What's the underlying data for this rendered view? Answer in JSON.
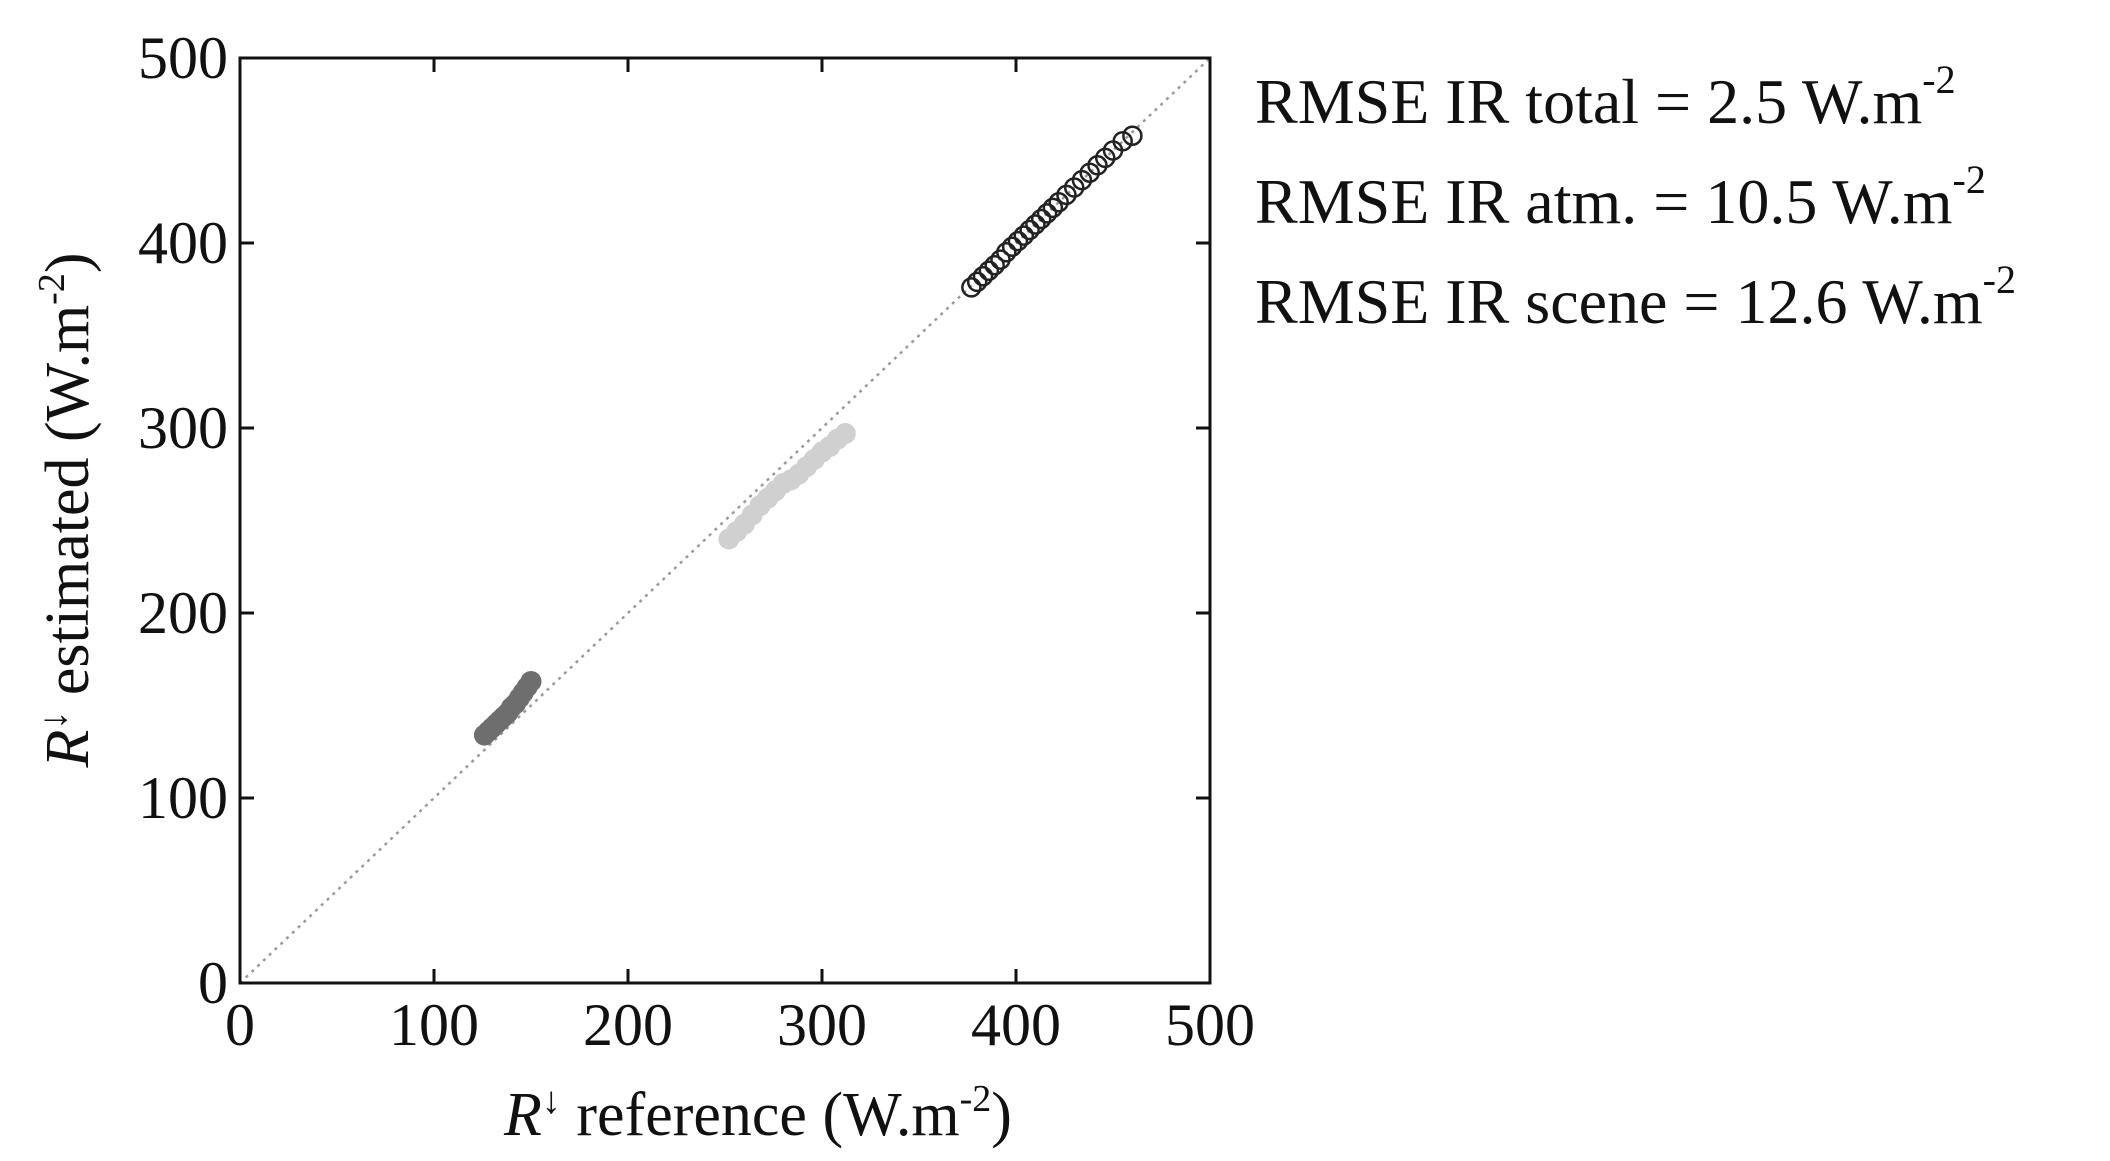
{
  "chart_data": {
    "type": "scatter",
    "xlim": [
      0,
      500
    ],
    "ylim": [
      0,
      500
    ],
    "x_ticks": [
      "0",
      "100",
      "200",
      "300",
      "400",
      "500"
    ],
    "y_ticks": [
      "0",
      "100",
      "200",
      "300",
      "400",
      "500"
    ],
    "xlabel": {
      "symbol": "R",
      "arrow": "↓",
      "text": " reference (W.m",
      "sup": "-2",
      "close": ")"
    },
    "ylabel": {
      "symbol": "R",
      "arrow": "↓",
      "text": " estimated  (W.m",
      "sup": "-2",
      "close": ")"
    },
    "grid": false,
    "reference_line": {
      "style": "dotted",
      "color": "#9a9a9a",
      "from": [
        0,
        0
      ],
      "to": [
        500,
        500
      ]
    },
    "series": [
      {
        "marker": "filled",
        "color": "#6e6e6e",
        "points": [
          [
            126,
            134
          ],
          [
            128,
            136
          ],
          [
            130,
            138
          ],
          [
            132,
            140
          ],
          [
            134,
            142
          ],
          [
            136,
            144
          ],
          [
            138,
            146
          ],
          [
            140,
            149
          ],
          [
            142,
            151
          ],
          [
            144,
            154
          ],
          [
            146,
            157
          ],
          [
            148,
            160
          ],
          [
            150,
            163
          ]
        ]
      },
      {
        "marker": "filled",
        "color": "#d0d0d0",
        "points": [
          [
            252,
            240
          ],
          [
            256,
            244
          ],
          [
            260,
            248
          ],
          [
            264,
            253
          ],
          [
            268,
            258
          ],
          [
            272,
            262
          ],
          [
            276,
            266
          ],
          [
            280,
            270
          ],
          [
            284,
            272
          ],
          [
            288,
            275
          ],
          [
            292,
            279
          ],
          [
            296,
            283
          ],
          [
            300,
            287
          ],
          [
            304,
            290
          ],
          [
            308,
            294
          ],
          [
            312,
            297
          ]
        ]
      },
      {
        "marker": "open-circle",
        "color": "#222222",
        "points": [
          [
            377,
            376
          ],
          [
            380,
            379
          ],
          [
            383,
            382
          ],
          [
            386,
            385
          ],
          [
            389,
            388
          ],
          [
            392,
            391
          ],
          [
            395,
            395
          ],
          [
            398,
            398
          ],
          [
            401,
            401
          ],
          [
            404,
            404
          ],
          [
            407,
            407
          ],
          [
            410,
            410
          ],
          [
            413,
            413
          ],
          [
            416,
            416
          ],
          [
            419,
            419
          ],
          [
            422,
            422
          ],
          [
            426,
            426
          ],
          [
            430,
            430
          ],
          [
            434,
            434
          ],
          [
            438,
            438
          ],
          [
            442,
            442
          ],
          [
            446,
            446
          ],
          [
            450,
            450
          ],
          [
            455,
            455
          ],
          [
            460,
            458
          ]
        ]
      }
    ],
    "annotations": [
      {
        "text": "RMSE IR total = 2.5 W.m",
        "sup": "-2"
      },
      {
        "text": "RMSE IR atm. = 10.5 W.m",
        "sup": "-2"
      },
      {
        "text": "RMSE IR scene = 12.6 W.m",
        "sup": "-2"
      }
    ]
  }
}
